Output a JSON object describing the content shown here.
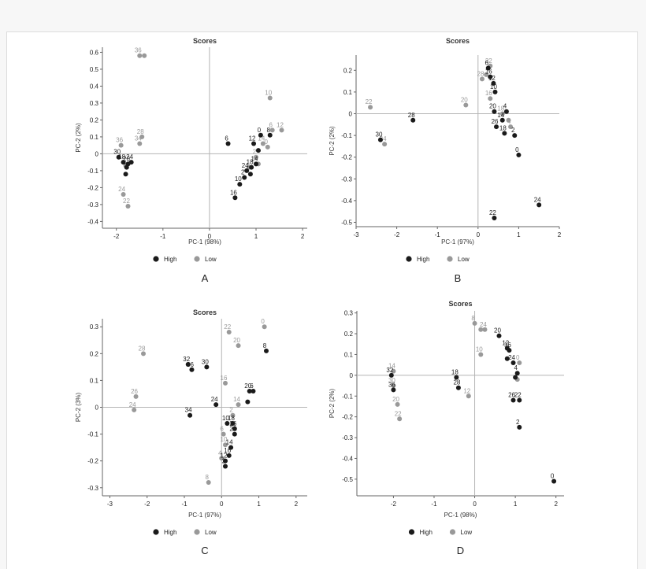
{
  "colors": {
    "High": "#1a1a1a",
    "Low": "#999999",
    "axis": "#666666",
    "zero": "#b4b4b4",
    "tick": "#222222"
  },
  "legend": [
    "High",
    "Low"
  ],
  "chart_data": [
    {
      "type": "scatter",
      "panel_label": "A",
      "title": "Scores",
      "xlabel": "PC-1 (98%)",
      "ylabel": "PC-2 (2%)",
      "xlim": [
        -2.3,
        2.1
      ],
      "ylim": [
        -0.44,
        0.63
      ],
      "xticks": [
        -2,
        -1,
        0,
        1,
        2
      ],
      "yticks": [
        -0.4,
        -0.3,
        -0.2,
        -0.1,
        0,
        0.1,
        0.2,
        0.3,
        0.4,
        0.5,
        0.6
      ],
      "series": [
        {
          "name": "High",
          "points": [
            {
              "x": -1.95,
              "y": -0.02,
              "label": "30"
            },
            {
              "x": -1.85,
              "y": -0.05,
              "label": "18"
            },
            {
              "x": -1.75,
              "y": -0.06,
              "label": "20"
            },
            {
              "x": -1.68,
              "y": -0.05,
              "label": "24"
            },
            {
              "x": -1.8,
              "y": -0.12,
              "label": ""
            },
            {
              "x": -1.78,
              "y": -0.08,
              "label": ""
            },
            {
              "x": 0.4,
              "y": 0.06,
              "label": "6"
            },
            {
              "x": 0.55,
              "y": -0.26,
              "label": "16"
            },
            {
              "x": 0.65,
              "y": -0.18,
              "label": "10"
            },
            {
              "x": 0.75,
              "y": -0.14,
              "label": "2"
            },
            {
              "x": 0.8,
              "y": -0.1,
              "label": "24"
            },
            {
              "x": 0.9,
              "y": -0.08,
              "label": "18"
            },
            {
              "x": 1.0,
              "y": -0.06,
              "label": "14"
            },
            {
              "x": 0.95,
              "y": 0.06,
              "label": "12"
            },
            {
              "x": 1.1,
              "y": 0.11,
              "label": "0"
            },
            {
              "x": 1.3,
              "y": 0.11,
              "label": "8"
            },
            {
              "x": 1.05,
              "y": 0.02,
              "label": ""
            },
            {
              "x": 0.88,
              "y": -0.12,
              "label": ""
            }
          ]
        },
        {
          "name": "Low",
          "points": [
            {
              "x": -1.5,
              "y": 0.58,
              "label": "36"
            },
            {
              "x": -1.4,
              "y": 0.58,
              "label": ""
            },
            {
              "x": -1.9,
              "y": 0.05,
              "label": "36"
            },
            {
              "x": -1.45,
              "y": 0.1,
              "label": "28"
            },
            {
              "x": -1.5,
              "y": 0.06,
              "label": "34"
            },
            {
              "x": -1.85,
              "y": -0.24,
              "label": "24"
            },
            {
              "x": -1.75,
              "y": -0.31,
              "label": "22"
            },
            {
              "x": -1.8,
              "y": -0.07,
              "label": ""
            },
            {
              "x": 1.3,
              "y": 0.33,
              "label": "10"
            },
            {
              "x": 1.35,
              "y": 0.14,
              "label": "6"
            },
            {
              "x": 1.55,
              "y": 0.14,
              "label": "12"
            },
            {
              "x": 1.25,
              "y": 0.04,
              "label": "0"
            },
            {
              "x": 1.15,
              "y": 0.06,
              "label": "14"
            },
            {
              "x": 1.0,
              "y": -0.02,
              "label": "2"
            },
            {
              "x": 1.05,
              "y": -0.06,
              "label": ""
            },
            {
              "x": 0.85,
              "y": -0.08,
              "label": ""
            }
          ]
        }
      ]
    },
    {
      "type": "scatter",
      "panel_label": "B",
      "title": "Scores",
      "xlabel": "PC-1 (97%)",
      "ylabel": "PC-2 (2%)",
      "xlim": [
        -3.0,
        2.0
      ],
      "ylim": [
        -0.52,
        0.27
      ],
      "xticks": [
        -3,
        -2,
        -1,
        0,
        1,
        2
      ],
      "yticks": [
        -0.5,
        -0.4,
        -0.3,
        -0.2,
        -0.1,
        0,
        0.1,
        0.2
      ],
      "series": [
        {
          "name": "High",
          "points": [
            {
              "x": -1.6,
              "y": -0.03,
              "label": "28"
            },
            {
              "x": -2.4,
              "y": -0.12,
              "label": "30"
            },
            {
              "x": 0.25,
              "y": 0.21,
              "label": "6"
            },
            {
              "x": 0.3,
              "y": 0.17,
              "label": "16"
            },
            {
              "x": 0.38,
              "y": 0.14,
              "label": "12"
            },
            {
              "x": 0.42,
              "y": 0.1,
              "label": "10"
            },
            {
              "x": 0.4,
              "y": 0.01,
              "label": "20"
            },
            {
              "x": 0.7,
              "y": 0.01,
              "label": "4"
            },
            {
              "x": 0.6,
              "y": -0.03,
              "label": "14"
            },
            {
              "x": 0.45,
              "y": -0.06,
              "label": "26"
            },
            {
              "x": 0.65,
              "y": -0.09,
              "label": "18"
            },
            {
              "x": 0.9,
              "y": -0.1,
              "label": "2"
            },
            {
              "x": 1.0,
              "y": -0.19,
              "label": "0"
            },
            {
              "x": 1.5,
              "y": -0.42,
              "label": "24"
            },
            {
              "x": 0.4,
              "y": -0.48,
              "label": "22"
            }
          ]
        },
        {
          "name": "Low",
          "points": [
            {
              "x": -2.65,
              "y": 0.03,
              "label": "22"
            },
            {
              "x": -2.3,
              "y": -0.14,
              "label": "34"
            },
            {
              "x": -0.3,
              "y": 0.04,
              "label": "20"
            },
            {
              "x": 0.3,
              "y": 0.22,
              "label": "32"
            },
            {
              "x": 0.1,
              "y": 0.16,
              "label": "28"
            },
            {
              "x": 0.2,
              "y": 0.18,
              "label": ""
            },
            {
              "x": 0.3,
              "y": 0.07,
              "label": "16"
            },
            {
              "x": 0.6,
              "y": 0.0,
              "label": "18"
            },
            {
              "x": 0.75,
              "y": -0.03,
              "label": ""
            },
            {
              "x": 0.8,
              "y": -0.06,
              "label": "4"
            }
          ]
        }
      ]
    },
    {
      "type": "scatter",
      "panel_label": "C",
      "title": "Scores",
      "xlabel": "PC-1 (97%)",
      "ylabel": "PC-2 (3%)",
      "xlim": [
        -3.2,
        2.3
      ],
      "ylim": [
        -0.33,
        0.33
      ],
      "xticks": [
        -3,
        -2,
        -1,
        0,
        1,
        2
      ],
      "yticks": [
        -0.3,
        -0.2,
        -0.1,
        0,
        0.1,
        0.2,
        0.3
      ],
      "series": [
        {
          "name": "High",
          "points": [
            {
              "x": -0.9,
              "y": 0.16,
              "label": "32"
            },
            {
              "x": -0.8,
              "y": 0.14,
              "label": "36"
            },
            {
              "x": -0.4,
              "y": 0.15,
              "label": "30"
            },
            {
              "x": -0.85,
              "y": -0.03,
              "label": "34"
            },
            {
              "x": -0.15,
              "y": 0.01,
              "label": "24"
            },
            {
              "x": 1.2,
              "y": 0.21,
              "label": "8"
            },
            {
              "x": 0.85,
              "y": 0.06,
              "label": "6"
            },
            {
              "x": 0.75,
              "y": 0.06,
              "label": "20"
            },
            {
              "x": 0.7,
              "y": 0.02,
              "label": ""
            },
            {
              "x": 0.15,
              "y": -0.06,
              "label": "10"
            },
            {
              "x": 0.3,
              "y": -0.06,
              "label": "18"
            },
            {
              "x": 0.35,
              "y": -0.08,
              "label": "26"
            },
            {
              "x": 0.35,
              "y": -0.1,
              "label": "22"
            },
            {
              "x": 0.25,
              "y": -0.15,
              "label": "14"
            },
            {
              "x": 0.2,
              "y": -0.18,
              "label": "16"
            },
            {
              "x": 0.1,
              "y": -0.2,
              "label": "12"
            },
            {
              "x": 0.1,
              "y": -0.22,
              "label": "2"
            }
          ]
        },
        {
          "name": "Low",
          "points": [
            {
              "x": -2.1,
              "y": 0.2,
              "label": "28"
            },
            {
              "x": -2.3,
              "y": 0.04,
              "label": "26"
            },
            {
              "x": -2.35,
              "y": -0.01,
              "label": "24"
            },
            {
              "x": 0.2,
              "y": 0.28,
              "label": "22"
            },
            {
              "x": 0.45,
              "y": 0.23,
              "label": "20"
            },
            {
              "x": 1.15,
              "y": 0.3,
              "label": "0"
            },
            {
              "x": 0.1,
              "y": 0.09,
              "label": "16"
            },
            {
              "x": 0.45,
              "y": 0.01,
              "label": "14"
            },
            {
              "x": 0.3,
              "y": -0.03,
              "label": "2"
            },
            {
              "x": 0.05,
              "y": -0.1,
              "label": "6"
            },
            {
              "x": 0.1,
              "y": -0.14,
              "label": "10"
            },
            {
              "x": 0.0,
              "y": -0.19,
              "label": "4"
            },
            {
              "x": -0.35,
              "y": -0.28,
              "label": "8"
            }
          ]
        }
      ]
    },
    {
      "type": "scatter",
      "panel_label": "D",
      "title": "Scores",
      "xlabel": "PC-1 (98%)",
      "ylabel": "PC-2 (2%)",
      "xlim": [
        -2.9,
        2.2
      ],
      "ylim": [
        -0.58,
        0.31
      ],
      "xticks": [
        -2,
        -1,
        0,
        1,
        2
      ],
      "yticks": [
        -0.5,
        -0.4,
        -0.3,
        -0.2,
        -0.1,
        0,
        0.1,
        0.2,
        0.3
      ],
      "series": [
        {
          "name": "High",
          "points": [
            {
              "x": -2.05,
              "y": 0.0,
              "label": "32"
            },
            {
              "x": -2.0,
              "y": -0.07,
              "label": "36"
            },
            {
              "x": -0.45,
              "y": -0.01,
              "label": "18"
            },
            {
              "x": -0.4,
              "y": -0.06,
              "label": "28"
            },
            {
              "x": 0.6,
              "y": 0.19,
              "label": "20"
            },
            {
              "x": 0.8,
              "y": 0.13,
              "label": "12"
            },
            {
              "x": 0.85,
              "y": 0.12,
              "label": "16"
            },
            {
              "x": 0.8,
              "y": 0.08,
              "label": ""
            },
            {
              "x": 0.95,
              "y": 0.06,
              "label": "24"
            },
            {
              "x": 1.05,
              "y": 0.01,
              "label": "4"
            },
            {
              "x": 0.95,
              "y": -0.12,
              "label": "26"
            },
            {
              "x": 1.1,
              "y": -0.12,
              "label": "22"
            },
            {
              "x": 1.1,
              "y": -0.25,
              "label": "2"
            },
            {
              "x": 1.95,
              "y": -0.51,
              "label": "0"
            },
            {
              "x": 1.0,
              "y": -0.01,
              "label": ""
            }
          ]
        },
        {
          "name": "Low",
          "points": [
            {
              "x": -2.0,
              "y": 0.02,
              "label": "14"
            },
            {
              "x": -2.0,
              "y": -0.05,
              "label": "30"
            },
            {
              "x": -1.9,
              "y": -0.14,
              "label": "20"
            },
            {
              "x": -1.85,
              "y": -0.21,
              "label": "22"
            },
            {
              "x": 0.0,
              "y": 0.25,
              "label": "8"
            },
            {
              "x": 0.25,
              "y": 0.22,
              "label": "24"
            },
            {
              "x": 0.15,
              "y": 0.22,
              "label": ""
            },
            {
              "x": 0.15,
              "y": 0.1,
              "label": "10"
            },
            {
              "x": -0.15,
              "y": -0.1,
              "label": "12"
            },
            {
              "x": 1.1,
              "y": 0.06,
              "label": "0"
            },
            {
              "x": 1.05,
              "y": -0.02,
              "label": ""
            }
          ]
        }
      ]
    }
  ]
}
